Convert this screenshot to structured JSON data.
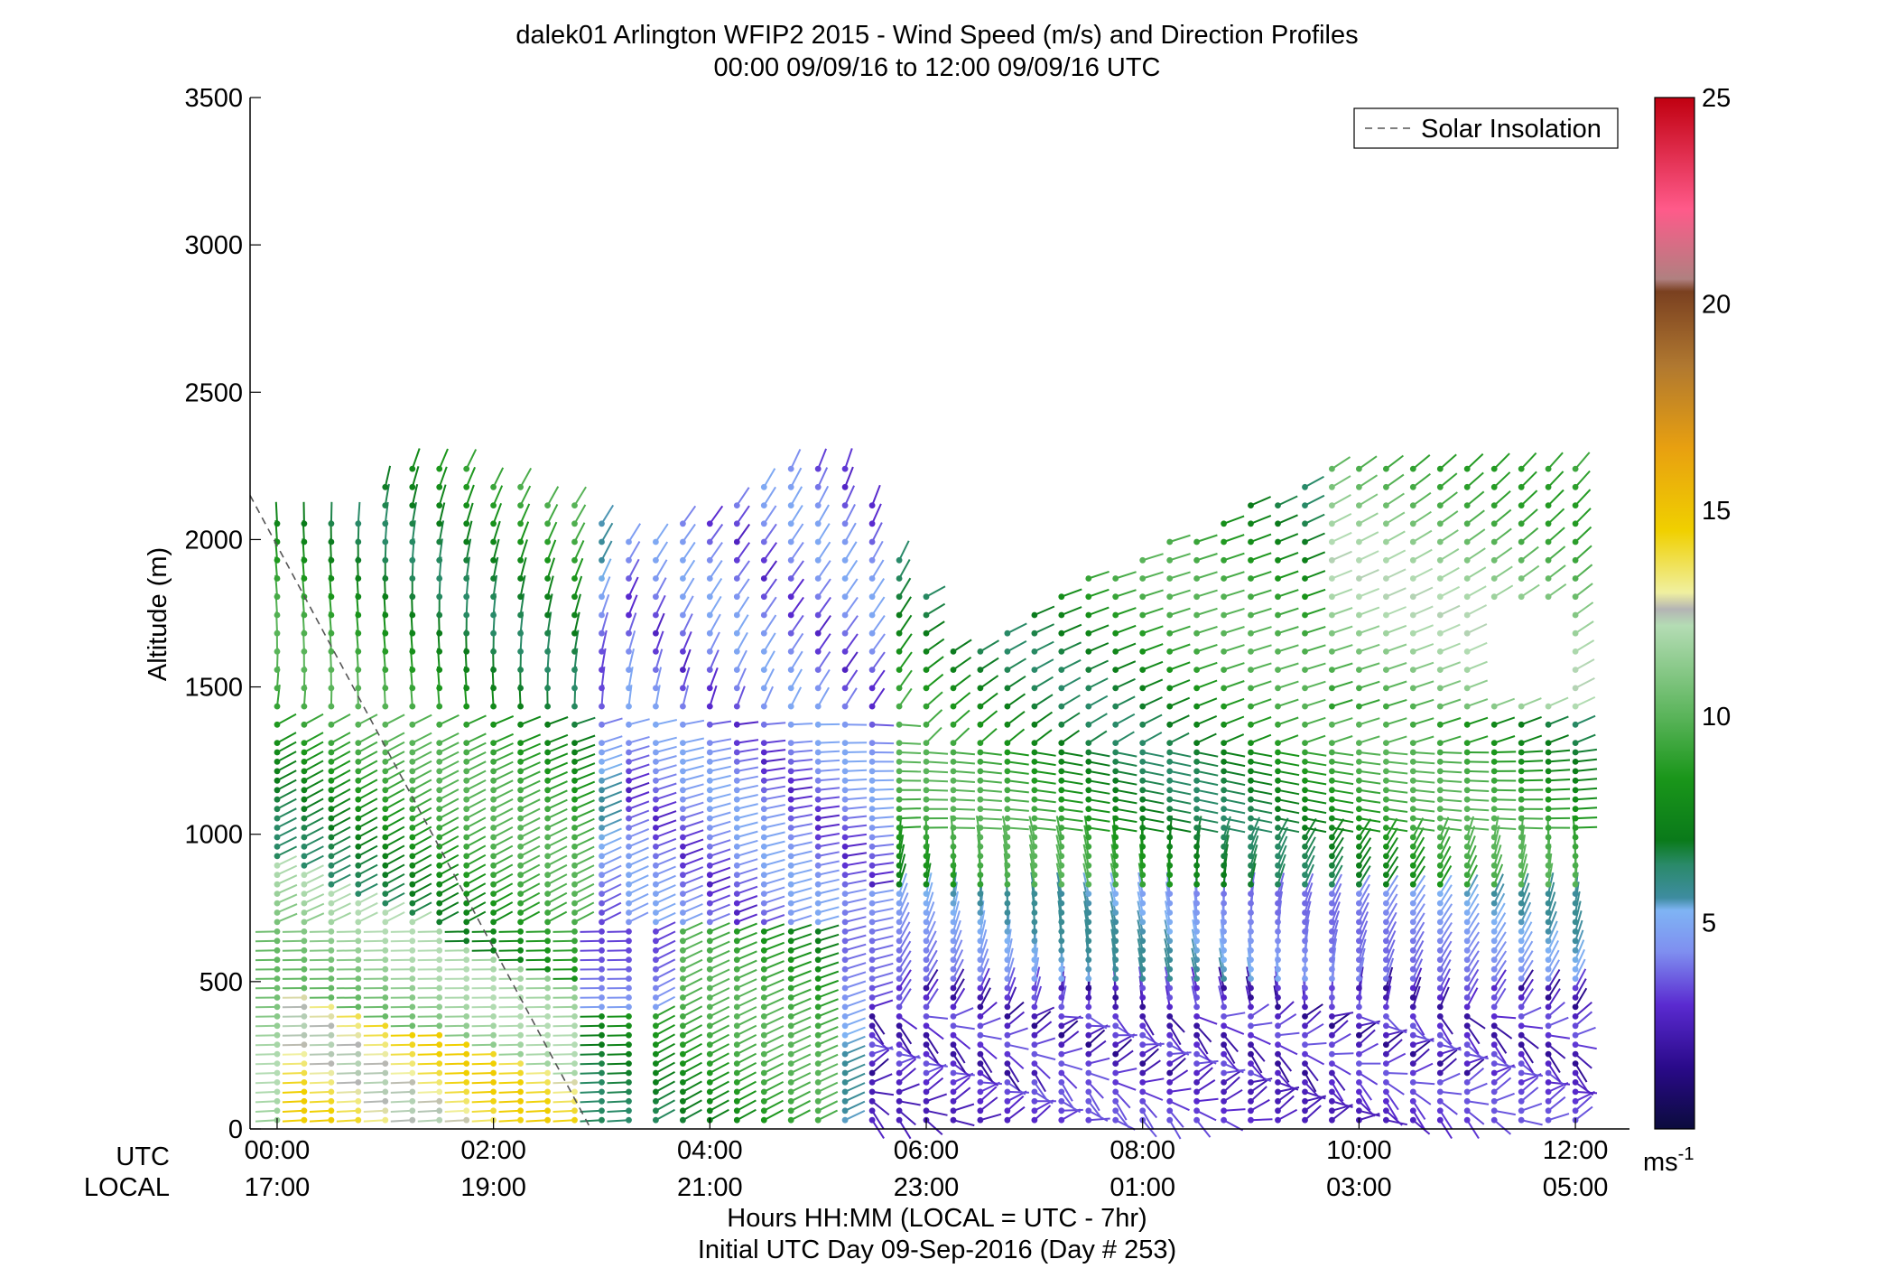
{
  "chart_data": {
    "type": "scatter",
    "title": "dalek01 Arlington WFIP2 2015 - Wind Speed (m/s) and Direction Profiles",
    "subtitle": "00:00 09/09/16 to 12:00 09/09/16  UTC",
    "ylabel": "Altitude (m)",
    "xlabel": "Hours HH:MM  (LOCAL = UTC - 7hr)",
    "xlabel2": "Initial UTC Day 09-Sep-2016 (Day # 253)",
    "ylim": [
      0,
      3500
    ],
    "xlim_hours": [
      -0.25,
      12.5
    ],
    "y_ticks": [
      "0",
      "500",
      "1000",
      "1500",
      "2000",
      "2500",
      "3000",
      "3500"
    ],
    "x_ticks_utc": [
      "00:00",
      "02:00",
      "04:00",
      "06:00",
      "08:00",
      "10:00",
      "12:00"
    ],
    "x_ticks_local": [
      "17:00",
      "19:00",
      "21:00",
      "23:00",
      "01:00",
      "03:00",
      "05:00"
    ],
    "row_label_utc": "UTC",
    "row_label_local": "LOCAL",
    "legend": {
      "entry": "Solar Insolation",
      "style": "dashed",
      "placement": "top-right"
    },
    "solar_insolation_line": {
      "x": [
        -0.25,
        2.9
      ],
      "y": [
        2150,
        0
      ]
    },
    "colorbar": {
      "min": 0,
      "max": 25,
      "ticks": [
        "5",
        "10",
        "15",
        "20",
        "25"
      ],
      "unit": "ms",
      "unit_sup": "-1",
      "stops": [
        {
          "v": 0,
          "c": "#0b0b3d"
        },
        {
          "v": 1.5,
          "c": "#2a0a8a"
        },
        {
          "v": 3.0,
          "c": "#5a2ad0"
        },
        {
          "v": 4.3,
          "c": "#7f8ff0"
        },
        {
          "v": 5.3,
          "c": "#7fb4f4"
        },
        {
          "v": 5.6,
          "c": "#3e8ca0"
        },
        {
          "v": 6.4,
          "c": "#2a8a6a"
        },
        {
          "v": 7.0,
          "c": "#0a7a1a"
        },
        {
          "v": 8.5,
          "c": "#1a961a"
        },
        {
          "v": 10.0,
          "c": "#5ab45a"
        },
        {
          "v": 12.2,
          "c": "#b4dcb4"
        },
        {
          "v": 12.6,
          "c": "#b4b4b4"
        },
        {
          "v": 13.0,
          "c": "#f0f0a0"
        },
        {
          "v": 14.5,
          "c": "#f0d000"
        },
        {
          "v": 16.5,
          "c": "#e8a010"
        },
        {
          "v": 18.5,
          "c": "#b07830"
        },
        {
          "v": 20.3,
          "c": "#7a4020"
        },
        {
          "v": 20.6,
          "c": "#b08080"
        },
        {
          "v": 22.3,
          "c": "#ff5a8a"
        },
        {
          "v": 25.0,
          "c": "#c00010"
        }
      ]
    }
  }
}
